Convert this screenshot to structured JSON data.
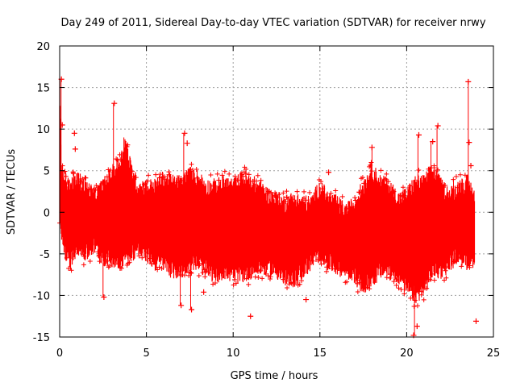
{
  "chart_data": {
    "type": "scatter",
    "title": "Day 249 of 2011, Sidereal Day-to-day VTEC variation (SDTVAR) for receiver nrwy",
    "xlabel": "GPS time / hours",
    "ylabel": "SDTVAR / TECUs",
    "xlim": [
      0,
      25
    ],
    "ylim": [
      -15,
      20
    ],
    "xticks": [
      0,
      5,
      10,
      15,
      20,
      25
    ],
    "yticks": [
      -15,
      -10,
      -5,
      0,
      5,
      10,
      15,
      20
    ],
    "xtick_labels": [
      "0",
      "5",
      "10",
      "15",
      "20",
      "25"
    ],
    "ytick_labels": [
      "-15",
      "-10",
      "-5",
      "0",
      "5",
      "10",
      "15",
      "20"
    ],
    "grid": true,
    "marker": "+",
    "series": [
      {
        "name": "SDTVAR",
        "color": "#ff0000",
        "envelope": {
          "x": [
            0.0,
            0.1,
            0.3,
            0.6,
            1.0,
            1.5,
            2.0,
            2.5,
            3.0,
            3.5,
            3.8,
            4.0,
            4.5,
            5.0,
            5.5,
            6.0,
            6.5,
            7.0,
            7.5,
            8.0,
            8.5,
            9.0,
            9.5,
            10.0,
            10.5,
            11.0,
            11.5,
            12.0,
            12.5,
            13.0,
            13.5,
            14.0,
            14.5,
            15.0,
            15.5,
            16.0,
            16.5,
            17.0,
            17.5,
            18.0,
            18.5,
            19.0,
            19.5,
            20.0,
            20.5,
            21.0,
            21.5,
            22.0,
            22.5,
            23.0,
            23.5,
            23.9
          ],
          "upper": [
            15.0,
            5.0,
            4.0,
            3.0,
            4.0,
            3.0,
            2.0,
            3.0,
            4.5,
            6.0,
            8.5,
            6.0,
            3.0,
            3.0,
            3.0,
            4.0,
            3.5,
            3.5,
            4.5,
            4.0,
            3.0,
            3.0,
            3.5,
            3.0,
            4.0,
            3.5,
            3.0,
            2.0,
            1.5,
            1.0,
            1.5,
            1.0,
            1.0,
            3.0,
            1.5,
            1.0,
            0.0,
            1.0,
            3.0,
            5.0,
            3.5,
            3.0,
            1.5,
            2.0,
            3.5,
            3.5,
            5.0,
            3.0,
            2.0,
            3.0,
            3.5,
            2.0
          ],
          "lower": [
            -1.0,
            -3.0,
            -5.0,
            -6.0,
            -4.0,
            -5.0,
            -4.0,
            -5.5,
            -5.5,
            -6.0,
            -5.0,
            -5.0,
            -4.5,
            -5.0,
            -6.0,
            -6.0,
            -7.0,
            -7.0,
            -6.0,
            -6.0,
            -7.0,
            -7.5,
            -7.0,
            -7.5,
            -7.5,
            -7.0,
            -6.5,
            -6.5,
            -7.0,
            -8.0,
            -8.0,
            -7.0,
            -6.0,
            -5.0,
            -6.0,
            -6.5,
            -7.0,
            -7.5,
            -9.0,
            -8.0,
            -7.0,
            -7.0,
            -7.5,
            -9.0,
            -10.0,
            -9.0,
            -7.0,
            -7.0,
            -6.0,
            -5.0,
            -6.0,
            -5.5
          ]
        },
        "outliers": [
          {
            "x": 0.1,
            "y": 16.0
          },
          {
            "x": 0.15,
            "y": 10.5
          },
          {
            "x": 0.85,
            "y": 9.5
          },
          {
            "x": 0.9,
            "y": 7.6
          },
          {
            "x": 3.15,
            "y": 13.1
          },
          {
            "x": 2.55,
            "y": -10.2
          },
          {
            "x": 7.2,
            "y": 9.5
          },
          {
            "x": 7.35,
            "y": 8.3
          },
          {
            "x": 7.0,
            "y": -11.2
          },
          {
            "x": 7.6,
            "y": -11.7
          },
          {
            "x": 8.3,
            "y": -9.6
          },
          {
            "x": 11.0,
            "y": -12.5
          },
          {
            "x": 14.2,
            "y": -10.5
          },
          {
            "x": 15.5,
            "y": 4.8
          },
          {
            "x": 20.4,
            "y": -14.8
          },
          {
            "x": 20.6,
            "y": -13.7
          },
          {
            "x": 21.8,
            "y": 10.4
          },
          {
            "x": 23.55,
            "y": 15.7
          },
          {
            "x": 23.6,
            "y": 8.4
          },
          {
            "x": 23.7,
            "y": 5.6
          },
          {
            "x": 24.0,
            "y": -13.1
          },
          {
            "x": 20.7,
            "y": 9.3
          },
          {
            "x": 21.5,
            "y": 8.5
          },
          {
            "x": 18.0,
            "y": 7.8
          }
        ],
        "spikes": [
          {
            "x": 0.08,
            "y0": 0.0,
            "y1": 16.0
          },
          {
            "x": 2.5,
            "y0": -6.0,
            "y1": -10.2
          },
          {
            "x": 3.1,
            "y0": 3.0,
            "y1": 13.1
          },
          {
            "x": 3.7,
            "y0": 3.0,
            "y1": 9.0
          },
          {
            "x": 7.15,
            "y0": 3.0,
            "y1": 9.5
          },
          {
            "x": 7.55,
            "y0": -6.0,
            "y1": -11.7
          },
          {
            "x": 6.95,
            "y0": -6.0,
            "y1": -11.2
          },
          {
            "x": 20.45,
            "y0": -8.0,
            "y1": -14.8
          },
          {
            "x": 20.65,
            "y0": 3.0,
            "y1": 9.3
          },
          {
            "x": 21.75,
            "y0": 3.0,
            "y1": 10.4
          },
          {
            "x": 23.55,
            "y0": -4.0,
            "y1": 15.7
          },
          {
            "x": 18.0,
            "y0": 3.0,
            "y1": 7.8
          },
          {
            "x": 21.4,
            "y0": 3.0,
            "y1": 8.5
          },
          {
            "x": 22.7,
            "y0": 2.0,
            "y1": 4.0
          }
        ]
      }
    ]
  }
}
